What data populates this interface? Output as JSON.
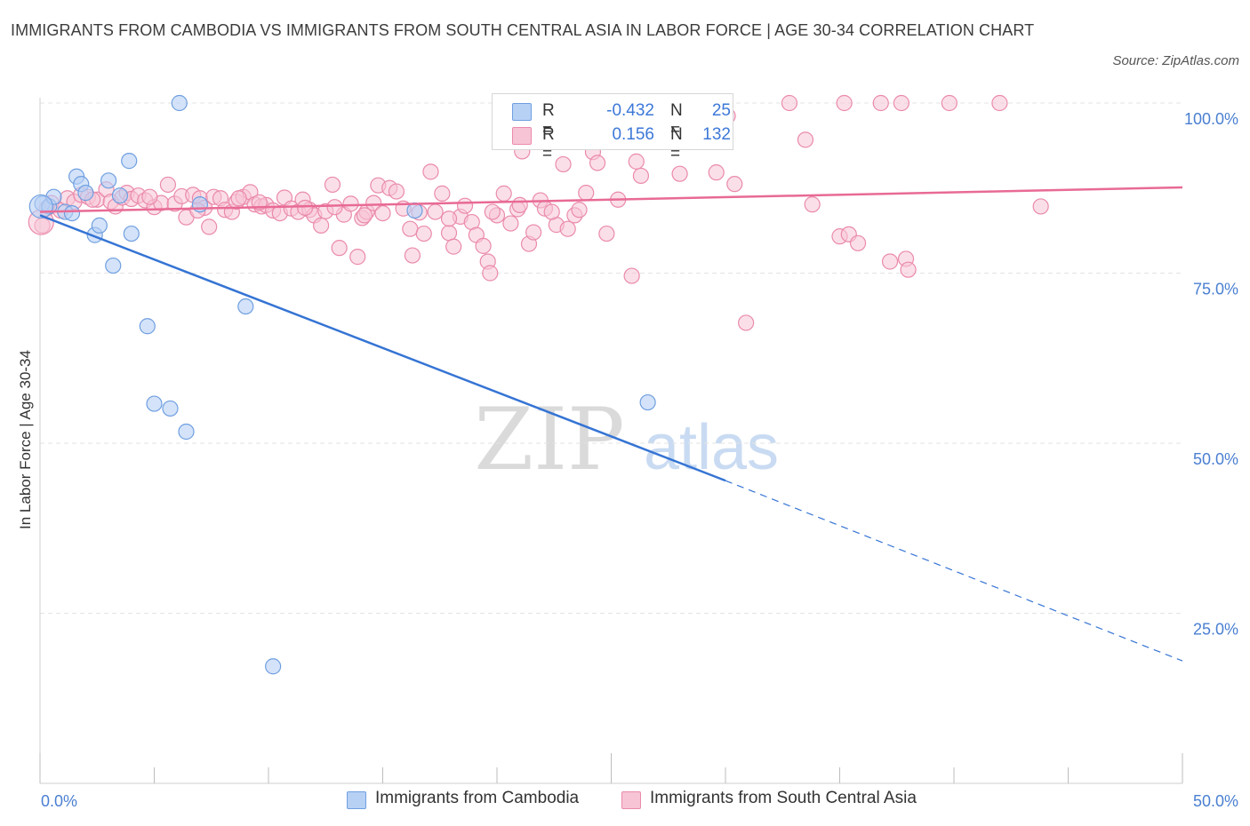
{
  "header": {
    "title": "IMMIGRANTS FROM CAMBODIA VS IMMIGRANTS FROM SOUTH CENTRAL ASIA IN LABOR FORCE | AGE 30-34 CORRELATION CHART",
    "source": "Source: ZipAtlas.com"
  },
  "legend": {
    "r_label": "R =",
    "n_label": "N =",
    "cambodia": {
      "r": "-0.432",
      "n": "25"
    },
    "sca": {
      "r": "0.156",
      "n": "132"
    }
  },
  "colors": {
    "cambodia_fill": "#b7d1f5",
    "cambodia_stroke": "#6f9fe0",
    "cambodia_line": "#3574d4",
    "sca_fill": "#f7c4d5",
    "sca_stroke": "#ea8aac",
    "sca_line": "#e86a95",
    "tick_text": "#4a7fd1",
    "grid": "#e3e3e3"
  },
  "chart_data": {
    "type": "scatter",
    "xlabel": "",
    "ylabel": "In Labor Force | Age 30-34",
    "xlim": [
      0,
      50
    ],
    "ylim": [
      0,
      100
    ],
    "x_tick_labels": [
      "0.0%",
      "50.0%"
    ],
    "y_ticks": [
      25,
      50,
      75,
      100
    ],
    "y_tick_labels": [
      "25.0%",
      "50.0%",
      "75.0%",
      "100.0%"
    ],
    "watermark": {
      "zip": "ZIP",
      "atlas": "atlas"
    },
    "series": [
      {
        "name": "Immigrants from Cambodia",
        "r": -0.432,
        "n": 25,
        "trend": {
          "x0": 0,
          "y0": 83.5,
          "x1": 30,
          "y1": 44.5,
          "dash_x1": 50,
          "dash_y1": 18
        },
        "points": [
          [
            0.1,
            85.2
          ],
          [
            0.4,
            84.8
          ],
          [
            0.6,
            86.2
          ],
          [
            1.1,
            84.0
          ],
          [
            1.4,
            83.8
          ],
          [
            1.6,
            89.2
          ],
          [
            1.8,
            88.1
          ],
          [
            2.0,
            86.8
          ],
          [
            2.4,
            80.6
          ],
          [
            2.6,
            82.0
          ],
          [
            3.0,
            88.6
          ],
          [
            3.2,
            76.1
          ],
          [
            3.5,
            86.4
          ],
          [
            3.9,
            91.5
          ],
          [
            4.0,
            80.8
          ],
          [
            4.7,
            67.2
          ],
          [
            5.0,
            55.8
          ],
          [
            5.7,
            55.1
          ],
          [
            6.1,
            100.0
          ],
          [
            6.4,
            51.7
          ],
          [
            7.0,
            85.1
          ],
          [
            9.0,
            70.1
          ],
          [
            10.2,
            17.2
          ],
          [
            16.4,
            84.2
          ],
          [
            26.6,
            56.0
          ]
        ]
      },
      {
        "name": "Immigrants from South Central Asia",
        "r": 0.156,
        "n": 132,
        "trend": {
          "x0": 0,
          "y0": 84.0,
          "x1": 50,
          "y1": 87.6
        },
        "points": [
          [
            0.1,
            82.0
          ],
          [
            0.3,
            84.5
          ],
          [
            0.5,
            85.3
          ],
          [
            0.9,
            84.2
          ],
          [
            1.2,
            86.0
          ],
          [
            1.5,
            85.5
          ],
          [
            1.8,
            86.5
          ],
          [
            2.1,
            86.2
          ],
          [
            2.5,
            85.8
          ],
          [
            2.9,
            87.3
          ],
          [
            3.1,
            85.5
          ],
          [
            3.3,
            84.8
          ],
          [
            3.6,
            86.1
          ],
          [
            3.8,
            86.8
          ],
          [
            4.0,
            85.9
          ],
          [
            4.3,
            86.4
          ],
          [
            4.6,
            85.7
          ],
          [
            5.0,
            84.7
          ],
          [
            5.3,
            85.3
          ],
          [
            5.6,
            88.0
          ],
          [
            5.9,
            85.2
          ],
          [
            6.2,
            86.3
          ],
          [
            6.4,
            83.2
          ],
          [
            6.7,
            86.5
          ],
          [
            7.0,
            86.0
          ],
          [
            7.2,
            84.6
          ],
          [
            7.4,
            81.8
          ],
          [
            7.6,
            86.2
          ],
          [
            7.9,
            86.0
          ],
          [
            8.1,
            84.3
          ],
          [
            8.4,
            84.0
          ],
          [
            8.6,
            85.5
          ],
          [
            8.9,
            86.2
          ],
          [
            9.2,
            86.9
          ],
          [
            9.4,
            85.1
          ],
          [
            9.7,
            84.8
          ],
          [
            9.9,
            85.0
          ],
          [
            10.2,
            84.2
          ],
          [
            10.5,
            83.8
          ],
          [
            10.7,
            86.1
          ],
          [
            11.0,
            84.5
          ],
          [
            11.3,
            84.0
          ],
          [
            11.5,
            85.8
          ],
          [
            11.8,
            84.3
          ],
          [
            12.0,
            83.5
          ],
          [
            12.3,
            82.0
          ],
          [
            12.5,
            84.1
          ],
          [
            12.8,
            88.0
          ],
          [
            13.1,
            78.7
          ],
          [
            13.3,
            83.6
          ],
          [
            13.6,
            85.2
          ],
          [
            13.9,
            77.4
          ],
          [
            14.1,
            83.1
          ],
          [
            14.3,
            84.0
          ],
          [
            14.6,
            85.3
          ],
          [
            14.8,
            87.9
          ],
          [
            15.0,
            83.8
          ],
          [
            15.3,
            87.5
          ],
          [
            15.6,
            87.0
          ],
          [
            15.9,
            84.5
          ],
          [
            16.2,
            81.5
          ],
          [
            16.3,
            77.6
          ],
          [
            16.6,
            83.9
          ],
          [
            16.8,
            80.8
          ],
          [
            17.1,
            89.9
          ],
          [
            17.3,
            84.0
          ],
          [
            17.6,
            86.7
          ],
          [
            17.9,
            80.9
          ],
          [
            18.1,
            78.9
          ],
          [
            18.4,
            83.3
          ],
          [
            18.6,
            84.9
          ],
          [
            18.9,
            82.5
          ],
          [
            19.1,
            80.6
          ],
          [
            19.4,
            79.0
          ],
          [
            19.6,
            76.7
          ],
          [
            19.7,
            75.0
          ],
          [
            20.0,
            83.5
          ],
          [
            20.3,
            86.7
          ],
          [
            20.6,
            82.3
          ],
          [
            20.9,
            84.4
          ],
          [
            21.1,
            92.9
          ],
          [
            21.4,
            79.3
          ],
          [
            21.6,
            81.0
          ],
          [
            21.9,
            85.7
          ],
          [
            22.1,
            84.5
          ],
          [
            22.6,
            82.1
          ],
          [
            22.9,
            91.0
          ],
          [
            23.1,
            81.5
          ],
          [
            23.4,
            83.5
          ],
          [
            23.6,
            84.3
          ],
          [
            23.9,
            86.8
          ],
          [
            24.2,
            92.8
          ],
          [
            24.4,
            91.2
          ],
          [
            24.8,
            80.8
          ],
          [
            25.3,
            85.8
          ],
          [
            25.9,
            74.6
          ],
          [
            26.1,
            91.4
          ],
          [
            26.3,
            89.3
          ],
          [
            28.0,
            89.6
          ],
          [
            29.6,
            89.8
          ],
          [
            30.1,
            98.1
          ],
          [
            30.4,
            88.1
          ],
          [
            30.9,
            67.7
          ],
          [
            32.8,
            100.0
          ],
          [
            33.5,
            94.6
          ],
          [
            33.8,
            85.1
          ],
          [
            35.0,
            80.4
          ],
          [
            35.2,
            100.0
          ],
          [
            35.4,
            80.7
          ],
          [
            35.8,
            79.4
          ],
          [
            36.8,
            100.0
          ],
          [
            37.2,
            76.7
          ],
          [
            37.7,
            100.0
          ],
          [
            37.9,
            77.1
          ],
          [
            38.0,
            75.5
          ],
          [
            39.8,
            100.0
          ],
          [
            42.0,
            100.0
          ],
          [
            43.8,
            84.8
          ],
          [
            2.3,
            85.8
          ],
          [
            4.8,
            86.2
          ],
          [
            6.9,
            84.2
          ],
          [
            8.7,
            86.0
          ],
          [
            11.6,
            84.6
          ],
          [
            14.2,
            83.5
          ],
          [
            17.9,
            83.0
          ],
          [
            19.8,
            84.0
          ],
          [
            21.0,
            85.0
          ],
          [
            22.4,
            84.0
          ],
          [
            9.6,
            85.4
          ],
          [
            12.9,
            84.7
          ]
        ]
      }
    ]
  },
  "bottom_legend": {
    "cambodia": "Immigrants from Cambodia",
    "sca": "Immigrants from South Central Asia"
  }
}
